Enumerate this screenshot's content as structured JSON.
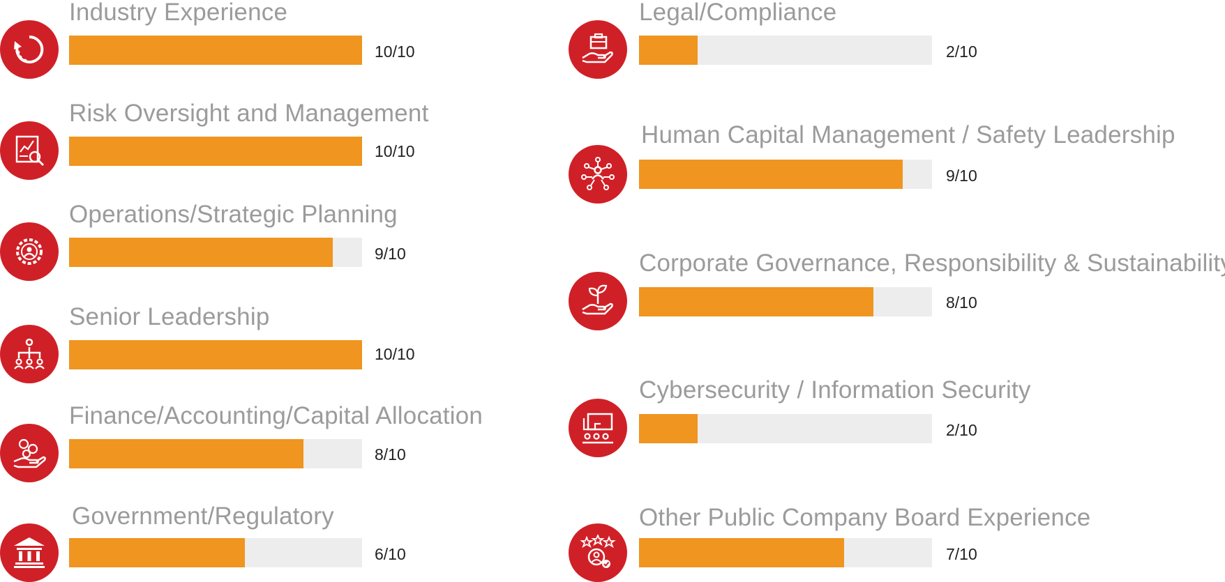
{
  "chart_data": {
    "type": "bar",
    "orientation": "horizontal",
    "max": 10,
    "series": [
      {
        "label": "Industry Experience",
        "value": 10,
        "score": "10/10",
        "icon": "circular-arrows-icon"
      },
      {
        "label": "Risk Oversight and Management",
        "value": 10,
        "score": "10/10",
        "icon": "report-magnifier-icon"
      },
      {
        "label": "Operations/Strategic Planning",
        "value": 9,
        "score": "9/10",
        "icon": "gear-person-icon"
      },
      {
        "label": "Senior Leadership",
        "value": 10,
        "score": "10/10",
        "icon": "org-chart-icon"
      },
      {
        "label": "Finance/Accounting/Capital Allocation",
        "value": 8,
        "score": "8/10",
        "icon": "hand-coins-icon"
      },
      {
        "label": "Government/Regulatory",
        "value": 6,
        "score": "6/10",
        "icon": "government-building-icon"
      },
      {
        "label": "Legal/Compliance",
        "value": 2,
        "score": "2/10",
        "icon": "hand-briefcase-icon"
      },
      {
        "label": "Human Capital Management / Safety Leadership",
        "value": 9,
        "score": "9/10",
        "icon": "people-network-icon"
      },
      {
        "label": "Corporate Governance, Responsibility & Sustainability",
        "value": 8,
        "score": "8/10",
        "icon": "hand-plant-icon"
      },
      {
        "label": "Cybersecurity / Information Security",
        "value": 2,
        "score": "2/10",
        "icon": "presentation-screen-icon"
      },
      {
        "label": "Other Public Company Board Experience",
        "value": 7,
        "score": "7/10",
        "icon": "star-rating-person-icon"
      }
    ]
  },
  "colors": {
    "fill": "#ef9520",
    "track": "#ededed",
    "icon_bg": "#d02027",
    "label": "#9b9b9b",
    "score": "#222222"
  }
}
